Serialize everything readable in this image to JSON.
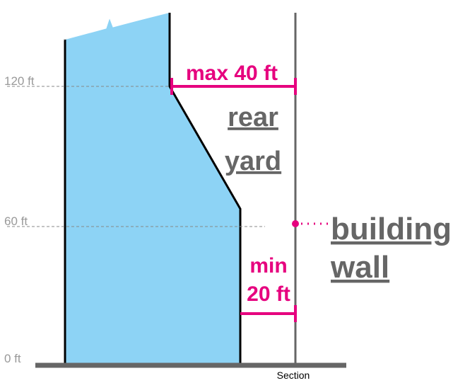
{
  "height_labels": {
    "h120": "120 ft",
    "h60": "60 ft",
    "h0": "0 ft"
  },
  "rear_yard": {
    "max_label": "max 40 ft",
    "line1": "rear",
    "line2": "yard"
  },
  "min_setback": {
    "line1": "min",
    "line2": "20 ft"
  },
  "building_wall": {
    "line1": "building",
    "line2": "wall"
  },
  "caption": "Section"
}
